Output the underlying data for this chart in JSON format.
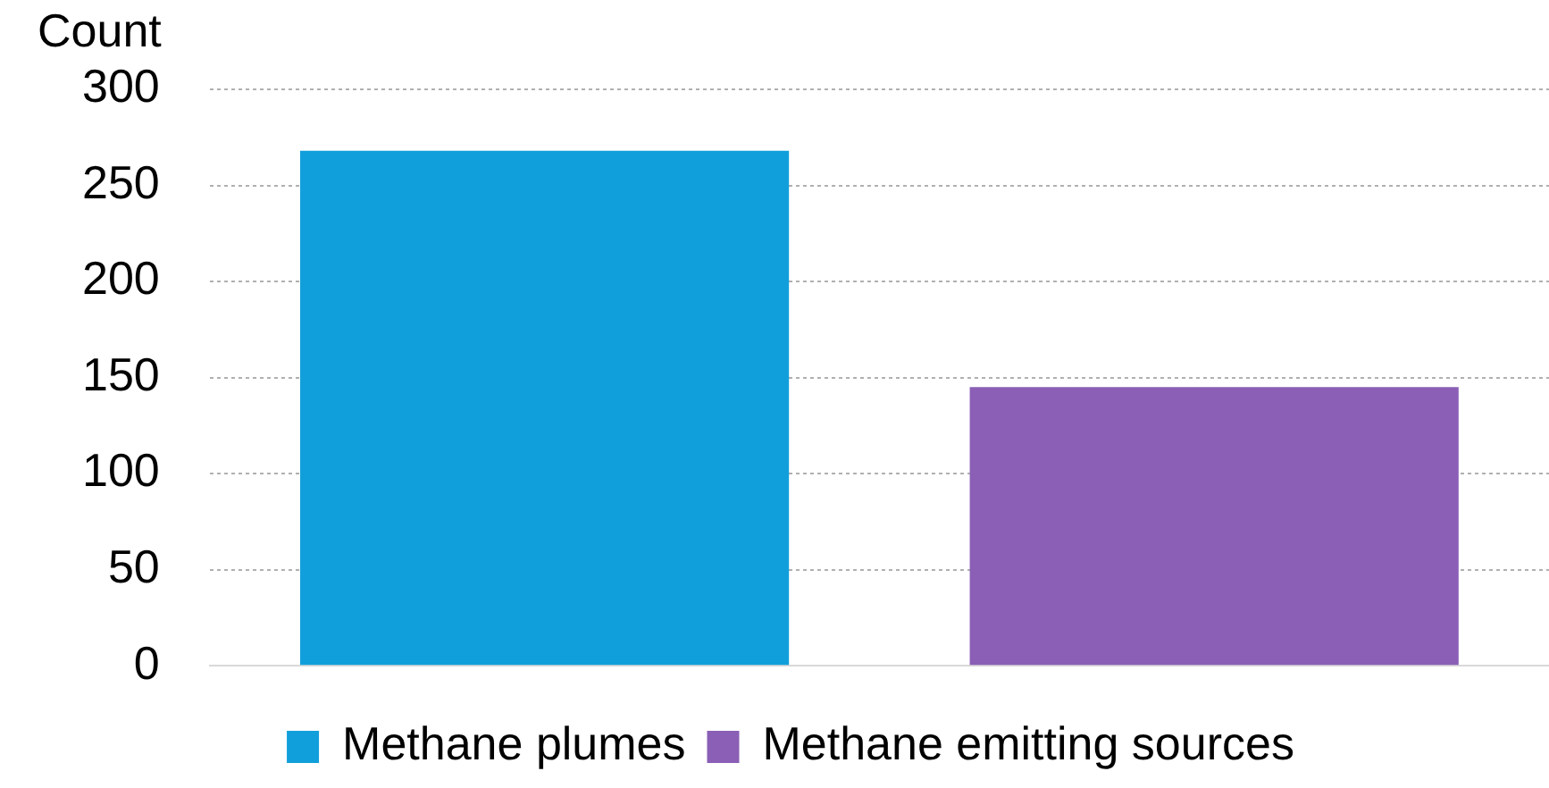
{
  "chart_data": {
    "type": "bar",
    "ylabel": "Count",
    "categories": [
      null,
      null
    ],
    "series": [
      {
        "name": "Methane plumes",
        "color": "#119fdb",
        "values": [
          268,
          null
        ]
      },
      {
        "name": "Methane emitting sources",
        "color": "#8a5fb5",
        "values": [
          null,
          145
        ]
      }
    ],
    "ylim": [
      0,
      300
    ],
    "yticks": [
      0,
      50,
      100,
      150,
      200,
      250,
      300
    ],
    "grid": "y",
    "legend": "bottom"
  }
}
